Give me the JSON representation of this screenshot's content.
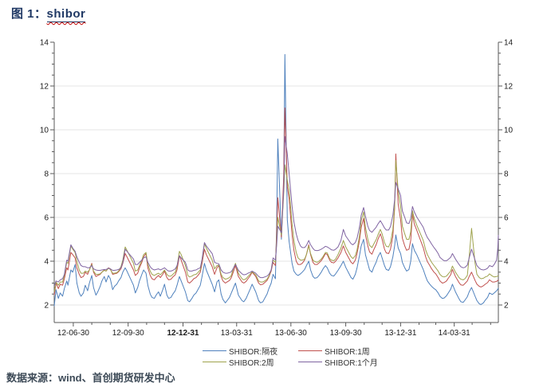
{
  "title": {
    "prefix": "图 1：",
    "keyword": "shibor"
  },
  "source_note": "数据来源：wind、首创期货研发中心",
  "colors": {
    "title": "#1f3864",
    "wavy": "#c00000",
    "source": "#3e4b58",
    "axis": "#5a5a5a",
    "gridline": "#e6e6e6",
    "series_overnight": "#4f81bd",
    "series_1w": "#c0504d",
    "series_2w": "#9fa34d",
    "series_1m": "#8064a2"
  },
  "chart_data": {
    "type": "line",
    "title": "图 1：shibor",
    "xlabel": "",
    "ylabel": "",
    "ylim": [
      1.2,
      14
    ],
    "y_tick_values": [
      2,
      4,
      6,
      8,
      10,
      12,
      14
    ],
    "y_gridlines": [
      2,
      4,
      6,
      8,
      10,
      12
    ],
    "y_axis_sides": "both",
    "legend_position": "bottom-center",
    "x_range": [
      "12-05-29",
      "14-06-13"
    ],
    "x_tick_labels": [
      {
        "label": "12-06-30",
        "bold": false
      },
      {
        "label": "12-09-30",
        "bold": false
      },
      {
        "label": "12-12-31",
        "bold": true
      },
      {
        "label": "13-03-31",
        "bold": false
      },
      {
        "label": "13-06-30",
        "bold": false
      },
      {
        "label": "13-09-30",
        "bold": false
      },
      {
        "label": "13-12-31",
        "bold": false
      },
      {
        "label": "14-03-31",
        "bold": false
      }
    ],
    "dates": [
      "12-05-29",
      "12-06-01",
      "12-06-05",
      "12-06-08",
      "12-06-12",
      "12-06-15",
      "12-06-19",
      "12-06-21",
      "12-06-26",
      "12-06-29",
      "12-07-03",
      "12-07-06",
      "12-07-10",
      "12-07-13",
      "12-07-17",
      "12-07-20",
      "12-07-24",
      "12-07-27",
      "12-07-31",
      "12-08-03",
      "12-08-07",
      "12-08-10",
      "12-08-14",
      "12-08-17",
      "12-08-21",
      "12-08-24",
      "12-08-28",
      "12-08-31",
      "12-09-04",
      "12-09-07",
      "12-09-11",
      "12-09-14",
      "12-09-18",
      "12-09-21",
      "12-09-25",
      "12-09-28",
      "12-10-09",
      "12-10-12",
      "12-10-16",
      "12-10-19",
      "12-10-23",
      "12-10-26",
      "12-10-30",
      "12-11-02",
      "12-11-06",
      "12-11-09",
      "12-11-13",
      "12-11-16",
      "12-11-20",
      "12-11-23",
      "12-11-27",
      "12-11-30",
      "12-12-04",
      "12-12-07",
      "12-12-11",
      "12-12-14",
      "12-12-18",
      "12-12-21",
      "12-12-25",
      "12-12-28",
      "13-01-04",
      "13-01-08",
      "13-01-11",
      "13-01-15",
      "13-01-18",
      "13-01-22",
      "13-01-25",
      "13-01-29",
      "13-02-01",
      "13-02-05",
      "13-02-08",
      "13-02-18",
      "13-02-22",
      "13-02-26",
      "13-03-01",
      "13-03-05",
      "13-03-08",
      "13-03-12",
      "13-03-15",
      "13-03-19",
      "13-03-22",
      "13-03-26",
      "13-03-29",
      "13-04-03",
      "13-04-09",
      "13-04-12",
      "13-04-16",
      "13-04-19",
      "13-04-23",
      "13-04-26",
      "13-05-02",
      "13-05-07",
      "13-05-10",
      "13-05-14",
      "13-05-17",
      "13-05-21",
      "13-05-24",
      "13-05-28",
      "13-05-31",
      "13-06-04",
      "13-06-06",
      "13-06-08",
      "13-06-14",
      "13-06-18",
      "13-06-20",
      "13-06-24",
      "13-06-27",
      "13-07-02",
      "13-07-05",
      "13-07-09",
      "13-07-12",
      "13-07-16",
      "13-07-19",
      "13-07-23",
      "13-07-26",
      "13-07-30",
      "13-08-02",
      "13-08-06",
      "13-08-09",
      "13-08-13",
      "13-08-16",
      "13-08-20",
      "13-08-23",
      "13-08-27",
      "13-08-30",
      "13-09-03",
      "13-09-06",
      "13-09-10",
      "13-09-13",
      "13-09-17",
      "13-09-22",
      "13-09-26",
      "13-09-30",
      "13-10-09",
      "13-10-12",
      "13-10-16",
      "13-10-19",
      "13-10-23",
      "13-10-26",
      "13-10-30",
      "13-11-02",
      "13-11-06",
      "13-11-09",
      "13-11-13",
      "13-11-16",
      "13-11-20",
      "13-11-23",
      "13-11-27",
      "13-11-30",
      "13-12-04",
      "13-12-07",
      "13-12-11",
      "13-12-14",
      "13-12-18",
      "13-12-21",
      "13-12-23",
      "13-12-27",
      "13-12-31",
      "14-01-03",
      "14-01-07",
      "14-01-10",
      "14-01-14",
      "14-01-17",
      "14-01-20",
      "14-01-23",
      "14-01-27",
      "14-02-07",
      "14-02-11",
      "14-02-14",
      "14-02-18",
      "14-02-21",
      "14-02-25",
      "14-02-28",
      "14-03-04",
      "14-03-07",
      "14-03-11",
      "14-03-14",
      "14-03-18",
      "14-03-21",
      "14-03-25",
      "14-03-28",
      "14-04-02",
      "14-04-08",
      "14-04-11",
      "14-04-15",
      "14-04-18",
      "14-04-22",
      "14-04-25",
      "14-04-29",
      "14-05-05",
      "14-05-08",
      "14-05-12",
      "14-05-15",
      "14-05-19",
      "14-05-22",
      "14-05-26",
      "14-05-29",
      "14-06-03",
      "14-06-06",
      "14-06-10",
      "14-06-12",
      "14-06-13"
    ],
    "series": [
      {
        "name": "SHIBOR:隔夜",
        "color": "#4f81bd",
        "values": [
          1.95,
          2.7,
          2.3,
          2.55,
          2.4,
          2.75,
          3.1,
          2.9,
          3.6,
          3.5,
          3.85,
          3.0,
          2.55,
          2.4,
          2.55,
          2.9,
          2.65,
          3.0,
          3.35,
          2.8,
          2.45,
          2.6,
          2.85,
          3.1,
          3.3,
          3.05,
          3.35,
          3.2,
          2.7,
          2.85,
          2.95,
          3.1,
          3.25,
          3.5,
          3.7,
          3.55,
          2.9,
          2.55,
          2.8,
          3.1,
          3.4,
          3.6,
          3.45,
          2.9,
          2.5,
          2.35,
          2.3,
          2.45,
          2.6,
          2.4,
          2.7,
          2.95,
          2.45,
          2.3,
          2.35,
          2.5,
          2.65,
          2.9,
          3.3,
          3.1,
          2.6,
          2.2,
          2.15,
          2.3,
          2.45,
          2.55,
          2.7,
          2.9,
          3.3,
          3.9,
          3.6,
          2.95,
          2.6,
          3.05,
          3.15,
          2.5,
          2.25,
          2.1,
          2.2,
          2.35,
          2.55,
          2.8,
          3.0,
          2.45,
          2.2,
          2.15,
          2.3,
          2.5,
          2.75,
          2.95,
          2.6,
          2.2,
          2.1,
          2.15,
          2.3,
          2.5,
          2.75,
          3.0,
          3.4,
          3.2,
          5.6,
          9.58,
          5.0,
          7.4,
          13.44,
          5.9,
          4.9,
          3.9,
          3.55,
          3.4,
          3.35,
          3.42,
          3.5,
          3.62,
          3.8,
          4.0,
          3.6,
          3.3,
          3.22,
          3.25,
          3.35,
          3.5,
          3.65,
          3.8,
          3.7,
          3.45,
          3.35,
          3.32,
          3.42,
          3.58,
          3.8,
          4.0,
          3.72,
          3.25,
          3.18,
          3.4,
          3.7,
          4.25,
          4.7,
          5.0,
          4.3,
          3.9,
          3.6,
          3.5,
          3.72,
          3.95,
          4.2,
          4.4,
          4.15,
          3.8,
          3.62,
          3.58,
          3.75,
          4.2,
          4.7,
          5.2,
          4.6,
          4.35,
          3.95,
          3.7,
          3.55,
          3.62,
          4.0,
          4.8,
          4.5,
          4.3,
          3.62,
          3.3,
          3.1,
          2.95,
          2.85,
          2.75,
          2.7,
          2.55,
          2.4,
          2.3,
          2.32,
          2.42,
          2.55,
          2.72,
          2.95,
          2.6,
          2.28,
          2.15,
          2.12,
          2.22,
          2.38,
          2.6,
          2.8,
          2.4,
          2.2,
          2.05,
          2.02,
          2.1,
          2.22,
          2.35,
          2.55,
          2.48,
          2.55,
          2.65,
          2.72,
          2.78
        ]
      },
      {
        "name": "SHIBOR:1周",
        "color": "#c0504d",
        "values": [
          2.45,
          3.0,
          2.75,
          2.95,
          2.9,
          3.2,
          3.7,
          3.6,
          4.4,
          4.3,
          4.15,
          3.7,
          3.4,
          3.25,
          3.3,
          3.5,
          3.4,
          3.6,
          3.9,
          3.5,
          3.3,
          3.35,
          3.4,
          3.5,
          3.6,
          3.55,
          3.7,
          3.65,
          3.4,
          3.42,
          3.45,
          3.52,
          3.65,
          3.9,
          4.35,
          4.2,
          3.6,
          3.35,
          3.45,
          3.7,
          3.95,
          4.2,
          4.35,
          3.7,
          3.35,
          3.2,
          3.15,
          3.25,
          3.35,
          3.25,
          3.4,
          3.55,
          3.25,
          3.15,
          3.18,
          3.28,
          3.38,
          3.6,
          4.25,
          4.05,
          3.5,
          3.05,
          3.0,
          3.1,
          3.2,
          3.25,
          3.35,
          3.5,
          3.9,
          4.55,
          4.3,
          3.75,
          3.4,
          3.7,
          3.8,
          3.3,
          3.1,
          3.0,
          3.05,
          3.12,
          3.25,
          3.55,
          3.8,
          3.3,
          3.05,
          3.0,
          3.08,
          3.2,
          3.35,
          3.5,
          3.3,
          3.0,
          2.92,
          2.95,
          3.02,
          3.12,
          3.28,
          3.55,
          3.95,
          3.8,
          5.2,
          6.9,
          5.1,
          7.9,
          11.0,
          7.4,
          6.85,
          5.2,
          4.5,
          4.0,
          3.85,
          3.85,
          3.9,
          4.05,
          4.3,
          4.75,
          4.3,
          3.95,
          3.85,
          3.85,
          3.92,
          4.02,
          4.15,
          4.35,
          4.3,
          4.05,
          3.95,
          3.92,
          4.0,
          4.15,
          4.4,
          4.7,
          4.4,
          3.95,
          3.88,
          4.05,
          4.35,
          4.95,
          5.55,
          5.95,
          5.2,
          4.7,
          4.42,
          4.32,
          4.52,
          4.75,
          5.0,
          5.25,
          5.0,
          4.55,
          4.38,
          4.35,
          4.55,
          5.15,
          6.4,
          8.9,
          6.6,
          5.9,
          5.05,
          4.7,
          4.5,
          4.55,
          4.95,
          6.15,
          5.7,
          5.42,
          4.62,
          4.2,
          3.98,
          3.8,
          3.65,
          3.5,
          3.42,
          3.25,
          3.1,
          3.0,
          3.02,
          3.1,
          3.22,
          3.38,
          3.62,
          3.3,
          3.02,
          2.92,
          2.9,
          2.98,
          3.1,
          3.3,
          3.5,
          3.12,
          2.95,
          2.85,
          2.82,
          2.88,
          2.95,
          3.02,
          3.15,
          3.05,
          3.05,
          3.08,
          3.12,
          3.15
        ]
      },
      {
        "name": "SHIBOR:2周",
        "color": "#9fa34d",
        "values": [
          2.6,
          3.05,
          2.9,
          3.05,
          3.05,
          3.35,
          3.95,
          3.9,
          4.7,
          4.55,
          4.4,
          4.0,
          3.6,
          3.45,
          3.45,
          3.55,
          3.5,
          3.6,
          3.85,
          3.55,
          3.4,
          3.4,
          3.42,
          3.5,
          3.58,
          3.55,
          3.68,
          3.62,
          3.45,
          3.45,
          3.48,
          3.55,
          3.75,
          4.05,
          4.65,
          4.5,
          3.9,
          3.55,
          3.6,
          3.8,
          4.05,
          4.3,
          4.4,
          3.85,
          3.55,
          3.4,
          3.35,
          3.4,
          3.45,
          3.38,
          3.5,
          3.6,
          3.4,
          3.32,
          3.32,
          3.4,
          3.5,
          3.75,
          4.45,
          4.3,
          3.8,
          3.35,
          3.28,
          3.32,
          3.38,
          3.4,
          3.48,
          3.6,
          4.05,
          4.8,
          4.6,
          4.05,
          3.65,
          3.8,
          3.82,
          3.4,
          3.25,
          3.18,
          3.2,
          3.25,
          3.35,
          3.7,
          3.9,
          3.45,
          3.2,
          3.15,
          3.2,
          3.3,
          3.42,
          3.52,
          3.38,
          3.1,
          3.05,
          3.05,
          3.1,
          3.18,
          3.32,
          3.6,
          4.05,
          3.95,
          4.9,
          6.0,
          5.2,
          7.1,
          8.4,
          7.7,
          7.25,
          5.7,
          4.95,
          4.4,
          4.15,
          4.05,
          4.05,
          4.1,
          4.3,
          4.7,
          4.35,
          4.05,
          3.98,
          3.95,
          4.0,
          4.1,
          4.22,
          4.4,
          4.38,
          4.12,
          4.05,
          4.02,
          4.1,
          4.3,
          4.6,
          4.95,
          4.65,
          4.2,
          4.12,
          4.25,
          4.52,
          5.15,
          5.85,
          6.25,
          5.55,
          5.0,
          4.72,
          4.62,
          4.78,
          4.98,
          5.2,
          5.45,
          5.25,
          4.85,
          4.68,
          4.65,
          4.85,
          5.45,
          6.5,
          8.6,
          7.2,
          6.5,
          5.6,
          5.25,
          5.0,
          5.0,
          5.35,
          6.3,
          5.95,
          5.65,
          4.95,
          4.52,
          4.3,
          4.1,
          3.95,
          3.8,
          3.7,
          3.55,
          3.4,
          3.3,
          3.28,
          3.32,
          3.42,
          3.55,
          3.78,
          3.5,
          3.25,
          3.18,
          3.15,
          3.2,
          3.35,
          4.2,
          5.5,
          3.9,
          3.4,
          3.25,
          3.2,
          3.22,
          3.28,
          3.32,
          3.42,
          3.32,
          3.28,
          3.3,
          3.32,
          3.35
        ]
      },
      {
        "name": "SHIBOR:1个月",
        "color": "#8064a2",
        "values": [
          2.85,
          3.1,
          3.05,
          3.15,
          3.2,
          3.4,
          4.05,
          4.0,
          4.75,
          4.6,
          4.45,
          4.2,
          3.95,
          3.8,
          3.75,
          3.75,
          3.7,
          3.7,
          3.8,
          3.65,
          3.6,
          3.58,
          3.58,
          3.6,
          3.62,
          3.62,
          3.68,
          3.65,
          3.58,
          3.58,
          3.6,
          3.62,
          3.7,
          3.95,
          4.55,
          4.45,
          4.1,
          3.85,
          3.85,
          3.95,
          4.05,
          4.15,
          4.2,
          3.95,
          3.75,
          3.65,
          3.6,
          3.62,
          3.65,
          3.6,
          3.65,
          3.7,
          3.6,
          3.55,
          3.55,
          3.58,
          3.65,
          3.8,
          4.25,
          4.15,
          3.95,
          3.6,
          3.55,
          3.55,
          3.58,
          3.6,
          3.65,
          3.7,
          4.1,
          4.85,
          4.7,
          4.35,
          3.95,
          3.9,
          3.88,
          3.6,
          3.5,
          3.45,
          3.45,
          3.48,
          3.52,
          3.7,
          3.85,
          3.58,
          3.42,
          3.38,
          3.4,
          3.45,
          3.5,
          3.55,
          3.45,
          3.3,
          3.25,
          3.25,
          3.28,
          3.32,
          3.4,
          3.6,
          4.15,
          4.05,
          4.7,
          5.6,
          5.3,
          7.3,
          9.7,
          8.9,
          8.0,
          6.5,
          5.8,
          5.25,
          4.95,
          4.7,
          4.62,
          4.62,
          4.72,
          4.95,
          4.75,
          4.58,
          4.5,
          4.48,
          4.5,
          4.55,
          4.6,
          4.68,
          4.65,
          4.58,
          4.52,
          4.5,
          4.55,
          4.65,
          4.95,
          5.45,
          5.15,
          4.8,
          4.75,
          4.85,
          5.05,
          5.55,
          6.1,
          6.45,
          6.05,
          5.6,
          5.4,
          5.32,
          5.42,
          5.55,
          5.7,
          5.85,
          5.72,
          5.52,
          5.42,
          5.42,
          5.58,
          6.1,
          6.8,
          7.6,
          7.3,
          7.0,
          6.3,
          6.0,
          5.75,
          5.72,
          5.95,
          6.5,
          6.25,
          6.02,
          5.55,
          5.25,
          5.08,
          4.92,
          4.78,
          4.62,
          4.52,
          4.35,
          4.18,
          4.08,
          4.02,
          4.02,
          4.08,
          4.18,
          4.35,
          4.1,
          3.85,
          3.75,
          3.7,
          3.72,
          3.82,
          4.15,
          4.55,
          4.05,
          3.8,
          3.68,
          3.62,
          3.6,
          3.62,
          3.68,
          3.8,
          3.75,
          3.85,
          4.05,
          4.6,
          5.2
        ]
      }
    ]
  }
}
